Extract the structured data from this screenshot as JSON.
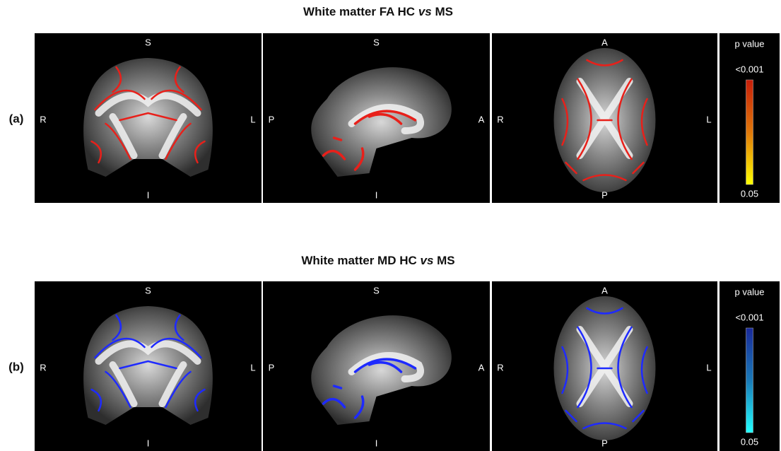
{
  "panels": [
    {
      "label": "(a)",
      "title": {
        "before": "White matter FA HC ",
        "italic": "vs",
        "after": " MS"
      },
      "views": [
        {
          "top": "S",
          "bottom": "I",
          "left": "R",
          "right": "L"
        },
        {
          "top": "S",
          "bottom": "I",
          "left": "P",
          "right": "A"
        },
        {
          "top": "A",
          "bottom": "P",
          "left": "R",
          "right": "L"
        }
      ],
      "colorbar": {
        "title": "p value",
        "max_label": "<0.001",
        "min_label": "0.05"
      }
    },
    {
      "label": "(b)",
      "title": {
        "before": "White matter MD HC ",
        "italic": "vs",
        "after": " MS"
      },
      "views": [
        {
          "top": "S",
          "bottom": "I",
          "left": "R",
          "right": "L"
        },
        {
          "top": "S",
          "bottom": "I",
          "left": "P",
          "right": "A"
        },
        {
          "top": "A",
          "bottom": "P",
          "left": "R",
          "right": "L"
        }
      ],
      "colorbar": {
        "title": "p value",
        "max_label": "<0.001",
        "min_label": "0.05"
      }
    }
  ]
}
